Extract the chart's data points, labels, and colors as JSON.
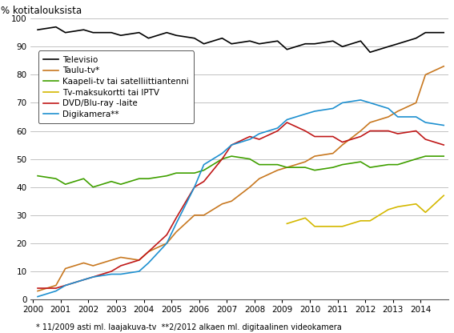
{
  "ylabel": "% kotitalouksista",
  "footnote": "* 11/2009 asti ml. laajakuva-tv  **2/2012 alkaen ml. digitaalinen videokamera",
  "ylim": [
    0,
    100
  ],
  "xlim": [
    1999.9,
    2015.0
  ],
  "series": {
    "Televisio": {
      "color": "#000000",
      "linewidth": 1.2,
      "data_x": [
        2000.17,
        2000.83,
        2001.17,
        2001.83,
        2002.17,
        2002.83,
        2003.17,
        2003.83,
        2004.17,
        2004.83,
        2005.17,
        2005.83,
        2006.17,
        2006.83,
        2007.17,
        2007.83,
        2008.17,
        2008.83,
        2009.17,
        2009.83,
        2010.17,
        2010.83,
        2011.17,
        2011.83,
        2012.17,
        2012.83,
        2013.17,
        2013.83,
        2014.17,
        2014.83
      ],
      "data_y": [
        96,
        97,
        95,
        96,
        95,
        95,
        94,
        95,
        93,
        95,
        94,
        93,
        91,
        93,
        91,
        92,
        91,
        92,
        89,
        91,
        91,
        92,
        90,
        92,
        88,
        90,
        91,
        93,
        95,
        95
      ]
    },
    "Taulu-tv*": {
      "color": "#C87820",
      "linewidth": 1.2,
      "data_x": [
        2000.17,
        2000.83,
        2001.17,
        2001.83,
        2002.17,
        2002.83,
        2003.17,
        2003.83,
        2004.17,
        2004.83,
        2005.17,
        2005.83,
        2006.17,
        2006.83,
        2007.17,
        2007.83,
        2008.17,
        2008.83,
        2009.17,
        2009.83,
        2010.17,
        2010.83,
        2011.17,
        2011.83,
        2012.17,
        2012.83,
        2013.17,
        2013.83,
        2014.17,
        2014.83
      ],
      "data_y": [
        3,
        5,
        11,
        13,
        12,
        14,
        15,
        14,
        17,
        20,
        24,
        30,
        30,
        34,
        35,
        40,
        43,
        46,
        47,
        49,
        51,
        52,
        55,
        60,
        63,
        65,
        67,
        70,
        80,
        83
      ]
    },
    "Kaapeli-tv tai satelliittiantenni": {
      "color": "#40A000",
      "linewidth": 1.2,
      "data_x": [
        2000.17,
        2000.83,
        2001.17,
        2001.83,
        2002.17,
        2002.83,
        2003.17,
        2003.83,
        2004.17,
        2004.83,
        2005.17,
        2005.83,
        2006.17,
        2006.83,
        2007.17,
        2007.83,
        2008.17,
        2008.83,
        2009.17,
        2009.83,
        2010.17,
        2010.83,
        2011.17,
        2011.83,
        2012.17,
        2012.83,
        2013.17,
        2013.83,
        2014.17,
        2014.83
      ],
      "data_y": [
        44,
        43,
        41,
        43,
        40,
        42,
        41,
        43,
        43,
        44,
        45,
        45,
        46,
        50,
        51,
        50,
        48,
        48,
        47,
        47,
        46,
        47,
        48,
        49,
        47,
        48,
        48,
        50,
        51,
        51
      ]
    },
    "Tv-maksukortti tai IPTV": {
      "color": "#D4B800",
      "linewidth": 1.2,
      "data_x": [
        2009.17,
        2009.83,
        2010.17,
        2010.83,
        2011.17,
        2011.83,
        2012.17,
        2012.83,
        2013.17,
        2013.83,
        2014.17,
        2014.83
      ],
      "data_y": [
        27,
        29,
        26,
        26,
        26,
        28,
        28,
        32,
        33,
        34,
        31,
        37
      ]
    },
    "DVD/Blu-ray -laite": {
      "color": "#C01818",
      "linewidth": 1.2,
      "data_x": [
        2000.17,
        2000.83,
        2001.17,
        2001.83,
        2002.17,
        2002.83,
        2003.17,
        2003.83,
        2004.17,
        2004.83,
        2005.17,
        2005.83,
        2006.17,
        2006.83,
        2007.17,
        2007.83,
        2008.17,
        2008.83,
        2009.17,
        2009.83,
        2010.17,
        2010.83,
        2011.17,
        2011.83,
        2012.17,
        2012.83,
        2013.17,
        2013.83,
        2014.17,
        2014.83
      ],
      "data_y": [
        4,
        4,
        5,
        7,
        8,
        10,
        12,
        14,
        17,
        23,
        29,
        40,
        42,
        50,
        55,
        58,
        57,
        60,
        63,
        60,
        58,
        58,
        56,
        58,
        60,
        60,
        59,
        60,
        57,
        55
      ]
    },
    "Digikamera**": {
      "color": "#1E90D0",
      "linewidth": 1.2,
      "data_x": [
        2000.17,
        2000.83,
        2001.17,
        2001.83,
        2002.17,
        2002.83,
        2003.17,
        2003.83,
        2004.17,
        2004.83,
        2005.17,
        2005.83,
        2006.17,
        2006.83,
        2007.17,
        2007.83,
        2008.17,
        2008.83,
        2009.17,
        2009.83,
        2010.17,
        2010.83,
        2011.17,
        2011.83,
        2012.17,
        2012.83,
        2013.17,
        2013.83,
        2014.17,
        2014.83
      ],
      "data_y": [
        1,
        3,
        5,
        7,
        8,
        9,
        9,
        10,
        13,
        20,
        27,
        40,
        48,
        52,
        55,
        57,
        59,
        61,
        64,
        66,
        67,
        68,
        70,
        71,
        70,
        68,
        65,
        65,
        63,
        62
      ]
    }
  },
  "xticks": [
    2000,
    2001,
    2002,
    2003,
    2004,
    2005,
    2006,
    2007,
    2008,
    2009,
    2010,
    2011,
    2012,
    2013,
    2014
  ],
  "yticks": [
    0,
    10,
    20,
    30,
    40,
    50,
    60,
    70,
    80,
    90,
    100
  ],
  "legend_order": [
    "Televisio",
    "Taulu-tv*",
    "Kaapeli-tv tai satelliittiantenni",
    "Tv-maksukortti tai IPTV",
    "DVD/Blu-ray -laite",
    "Digikamera**"
  ]
}
